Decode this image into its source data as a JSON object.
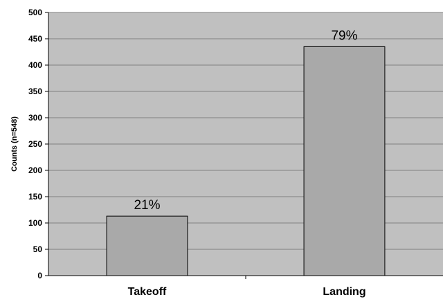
{
  "chart_data": {
    "type": "bar",
    "categories": [
      "Takeoff",
      "Landing"
    ],
    "values": [
      113,
      435
    ],
    "data_labels": [
      "21%",
      "79%"
    ],
    "title": "",
    "xlabel": "",
    "ylabel": "Counts (n=548)",
    "ylim": [
      0,
      500
    ],
    "yticks": [
      0,
      50,
      100,
      150,
      200,
      250,
      300,
      350,
      400,
      450,
      500
    ],
    "grid": true,
    "legend": "none",
    "colors": {
      "plot_background": "#c0c0c0",
      "bar_fill": "#a9a9a9",
      "bar_stroke": "#000000",
      "gridline": "#808080"
    }
  }
}
